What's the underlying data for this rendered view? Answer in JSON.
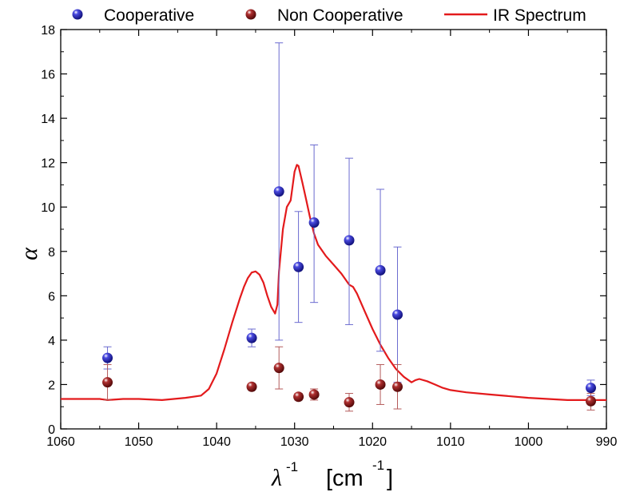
{
  "chart_data": {
    "type": "scatter",
    "title": "",
    "xlabel": "λ⁻¹",
    "xlabel_symbol": "λ",
    "xlabel_superscript": "-1",
    "xlabel_unit": "[cm",
    "xlabel_unit_superscript": "-1",
    "xlabel_unit_close": "]",
    "ylabel": "α",
    "xlim": [
      1060,
      990
    ],
    "ylim": [
      0,
      18
    ],
    "x_ticks": [
      1060,
      1050,
      1040,
      1030,
      1020,
      1010,
      1000,
      990
    ],
    "y_ticks": [
      0,
      2,
      4,
      6,
      8,
      10,
      12,
      14,
      16,
      18
    ],
    "grid": false,
    "legend_position": "top",
    "series": [
      {
        "name": "Cooperative",
        "kind": "scatter",
        "color": "#1a1aa6",
        "error_color": "#6b6bd0",
        "points": [
          {
            "x": 1054,
            "y": 3.2,
            "lo": 2.7,
            "hi": 3.7
          },
          {
            "x": 1035.5,
            "y": 4.1,
            "lo": 3.7,
            "hi": 4.5
          },
          {
            "x": 1032,
            "y": 10.7,
            "lo": 4.0,
            "hi": 17.4
          },
          {
            "x": 1029.5,
            "y": 7.3,
            "lo": 4.8,
            "hi": 9.8
          },
          {
            "x": 1027.5,
            "y": 9.3,
            "lo": 5.7,
            "hi": 12.8
          },
          {
            "x": 1023,
            "y": 8.5,
            "lo": 4.7,
            "hi": 12.2
          },
          {
            "x": 1019,
            "y": 7.15,
            "lo": 3.5,
            "hi": 10.8
          },
          {
            "x": 1016.8,
            "y": 5.15,
            "lo": 2.1,
            "hi": 8.2
          },
          {
            "x": 992,
            "y": 1.85,
            "lo": 1.5,
            "hi": 2.2
          }
        ]
      },
      {
        "name": "Non Cooperative",
        "kind": "scatter",
        "color": "#7a0c0c",
        "error_color": "#b45a5a",
        "points": [
          {
            "x": 1054,
            "y": 2.1,
            "lo": 1.3,
            "hi": 2.9
          },
          {
            "x": 1035.5,
            "y": 1.9,
            "lo": 1.8,
            "hi": 2.0
          },
          {
            "x": 1032,
            "y": 2.75,
            "lo": 1.8,
            "hi": 3.7
          },
          {
            "x": 1029.5,
            "y": 1.45,
            "lo": 1.3,
            "hi": 1.6
          },
          {
            "x": 1027.5,
            "y": 1.55,
            "lo": 1.3,
            "hi": 1.8
          },
          {
            "x": 1023,
            "y": 1.2,
            "lo": 0.8,
            "hi": 1.6
          },
          {
            "x": 1019,
            "y": 2.0,
            "lo": 1.1,
            "hi": 2.9
          },
          {
            "x": 1016.8,
            "y": 1.9,
            "lo": 0.9,
            "hi": 2.9
          },
          {
            "x": 992,
            "y": 1.25,
            "lo": 0.85,
            "hi": 1.6
          }
        ]
      },
      {
        "name": "IR Spectrum",
        "kind": "line",
        "color": "#e31a1c",
        "x": [
          1060,
          1055,
          1054,
          1052,
          1050,
          1047,
          1044,
          1042,
          1041,
          1040,
          1039,
          1038,
          1037,
          1036.5,
          1036,
          1035.5,
          1035,
          1034.5,
          1034,
          1033.5,
          1033,
          1032.5,
          1032.2,
          1032,
          1031.5,
          1031,
          1030.5,
          1030,
          1029.7,
          1029.5,
          1029,
          1028.5,
          1028,
          1027.5,
          1027,
          1026,
          1025,
          1024,
          1023,
          1022.5,
          1022,
          1021,
          1020,
          1019,
          1018,
          1017,
          1016,
          1015,
          1014.5,
          1014,
          1013,
          1012,
          1011,
          1010,
          1008,
          1005,
          1000,
          995,
          992,
          990
        ],
        "y": [
          1.35,
          1.35,
          1.3,
          1.35,
          1.35,
          1.3,
          1.4,
          1.5,
          1.8,
          2.5,
          3.6,
          4.8,
          5.9,
          6.4,
          6.8,
          7.05,
          7.1,
          6.95,
          6.6,
          6.0,
          5.5,
          5.2,
          5.6,
          7.1,
          9.0,
          10.0,
          10.3,
          11.6,
          11.9,
          11.85,
          11.1,
          10.3,
          9.5,
          8.8,
          8.3,
          7.8,
          7.4,
          7.0,
          6.5,
          6.4,
          6.1,
          5.3,
          4.5,
          3.8,
          3.2,
          2.7,
          2.35,
          2.1,
          2.2,
          2.25,
          2.15,
          2.0,
          1.85,
          1.75,
          1.65,
          1.55,
          1.4,
          1.3,
          1.3,
          1.3
        ]
      }
    ]
  }
}
